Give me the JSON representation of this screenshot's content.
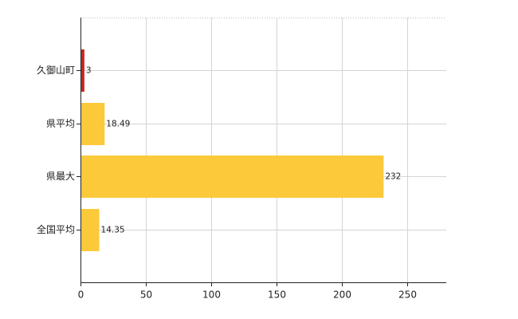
{
  "chart_data": {
    "type": "hbar",
    "categories": [
      "久御山町",
      "県平均",
      "県最大",
      "全国平均"
    ],
    "values": [
      3,
      18.49,
      232,
      14.35
    ],
    "colors": [
      "#c8281e",
      "#fcc93a",
      "#fcc93a",
      "#fcc93a"
    ],
    "xlim": [
      0,
      280
    ],
    "xticks": [
      0,
      50,
      100,
      150,
      200,
      250
    ],
    "grid": true
  }
}
